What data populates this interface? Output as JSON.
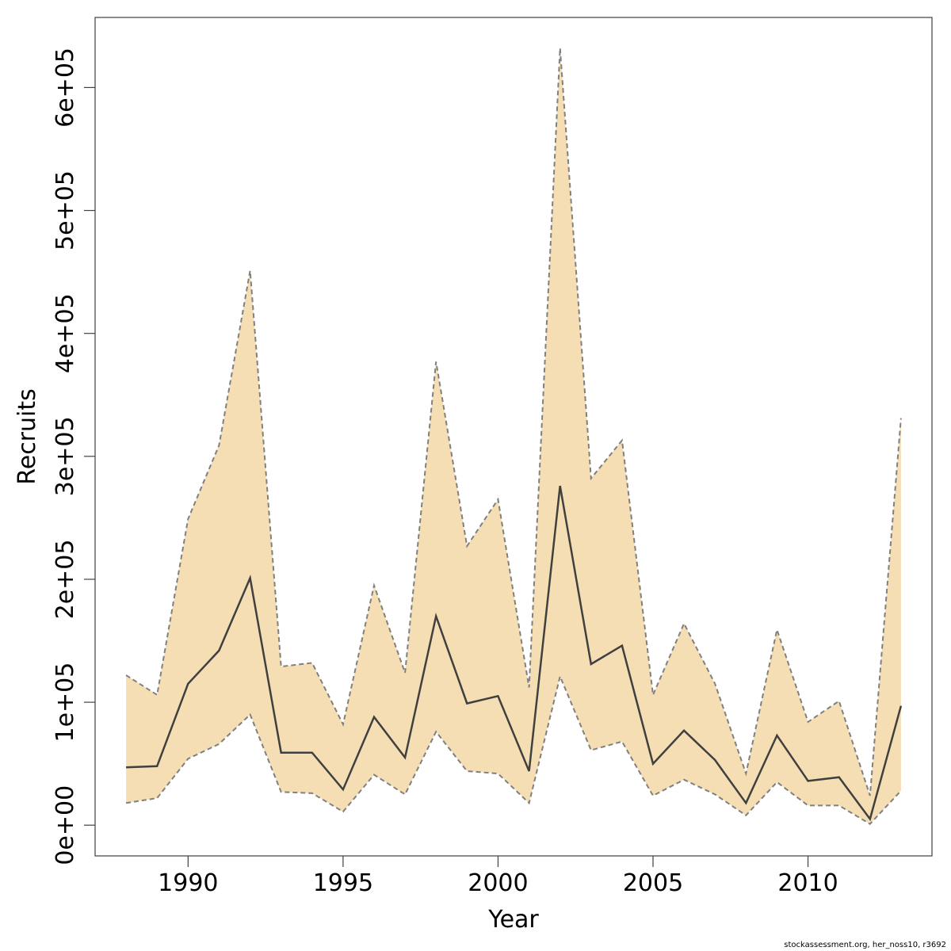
{
  "chart_data": {
    "type": "area",
    "xlabel": "Year",
    "ylabel": "Recruits",
    "xlim": [
      1987,
      2014
    ],
    "ylim": [
      -25000,
      657000
    ],
    "x_ticks": [
      1990,
      1995,
      2000,
      2005,
      2010
    ],
    "x_tick_labels": [
      "1990",
      "1995",
      "2000",
      "2005",
      "2010"
    ],
    "y_ticks": [
      0,
      100000,
      200000,
      300000,
      400000,
      500000,
      600000
    ],
    "y_tick_labels": [
      "0e+00",
      "1e+05",
      "2e+05",
      "3e+05",
      "4e+05",
      "5e+05",
      "6e+05"
    ],
    "x": [
      1988,
      1989,
      1990,
      1991,
      1992,
      1993,
      1994,
      1995,
      1996,
      1997,
      1998,
      1999,
      2000,
      2001,
      2002,
      2003,
      2004,
      2005,
      2006,
      2007,
      2008,
      2009,
      2010,
      2011,
      2012,
      2013
    ],
    "series": [
      {
        "values": [
          47000,
          48000,
          115000,
          142000,
          201000,
          59000,
          59000,
          29000,
          88000,
          55000,
          170000,
          99000,
          105000,
          44000,
          276000,
          131000,
          146000,
          50000,
          77000,
          53000,
          18000,
          73000,
          36000,
          39000,
          5000,
          97000
        ],
        "role": "estimate",
        "style": "solid"
      },
      {
        "values": [
          122000,
          106000,
          249000,
          309000,
          451000,
          129000,
          132000,
          82000,
          195000,
          124000,
          377000,
          227000,
          265000,
          112000,
          632000,
          282000,
          313000,
          106000,
          164000,
          115000,
          42000,
          159000,
          84000,
          101000,
          24000,
          331000
        ],
        "role": "upper bound",
        "style": "dashed"
      },
      {
        "values": [
          18000,
          22000,
          54000,
          66000,
          90000,
          27000,
          26000,
          11000,
          41000,
          25000,
          76000,
          44000,
          42000,
          18000,
          121000,
          61000,
          68000,
          24000,
          37000,
          25000,
          8000,
          35000,
          16000,
          16000,
          1000,
          28000
        ],
        "role": "lower bound",
        "style": "dashed"
      }
    ],
    "colors": {
      "band": "#f5deb3",
      "line": "#404040",
      "bound": "#808080",
      "frame": "#404040"
    },
    "grid": false,
    "legend": "none"
  },
  "footer": {
    "credit": "stockassessment.org, her_noss10, r3692"
  }
}
